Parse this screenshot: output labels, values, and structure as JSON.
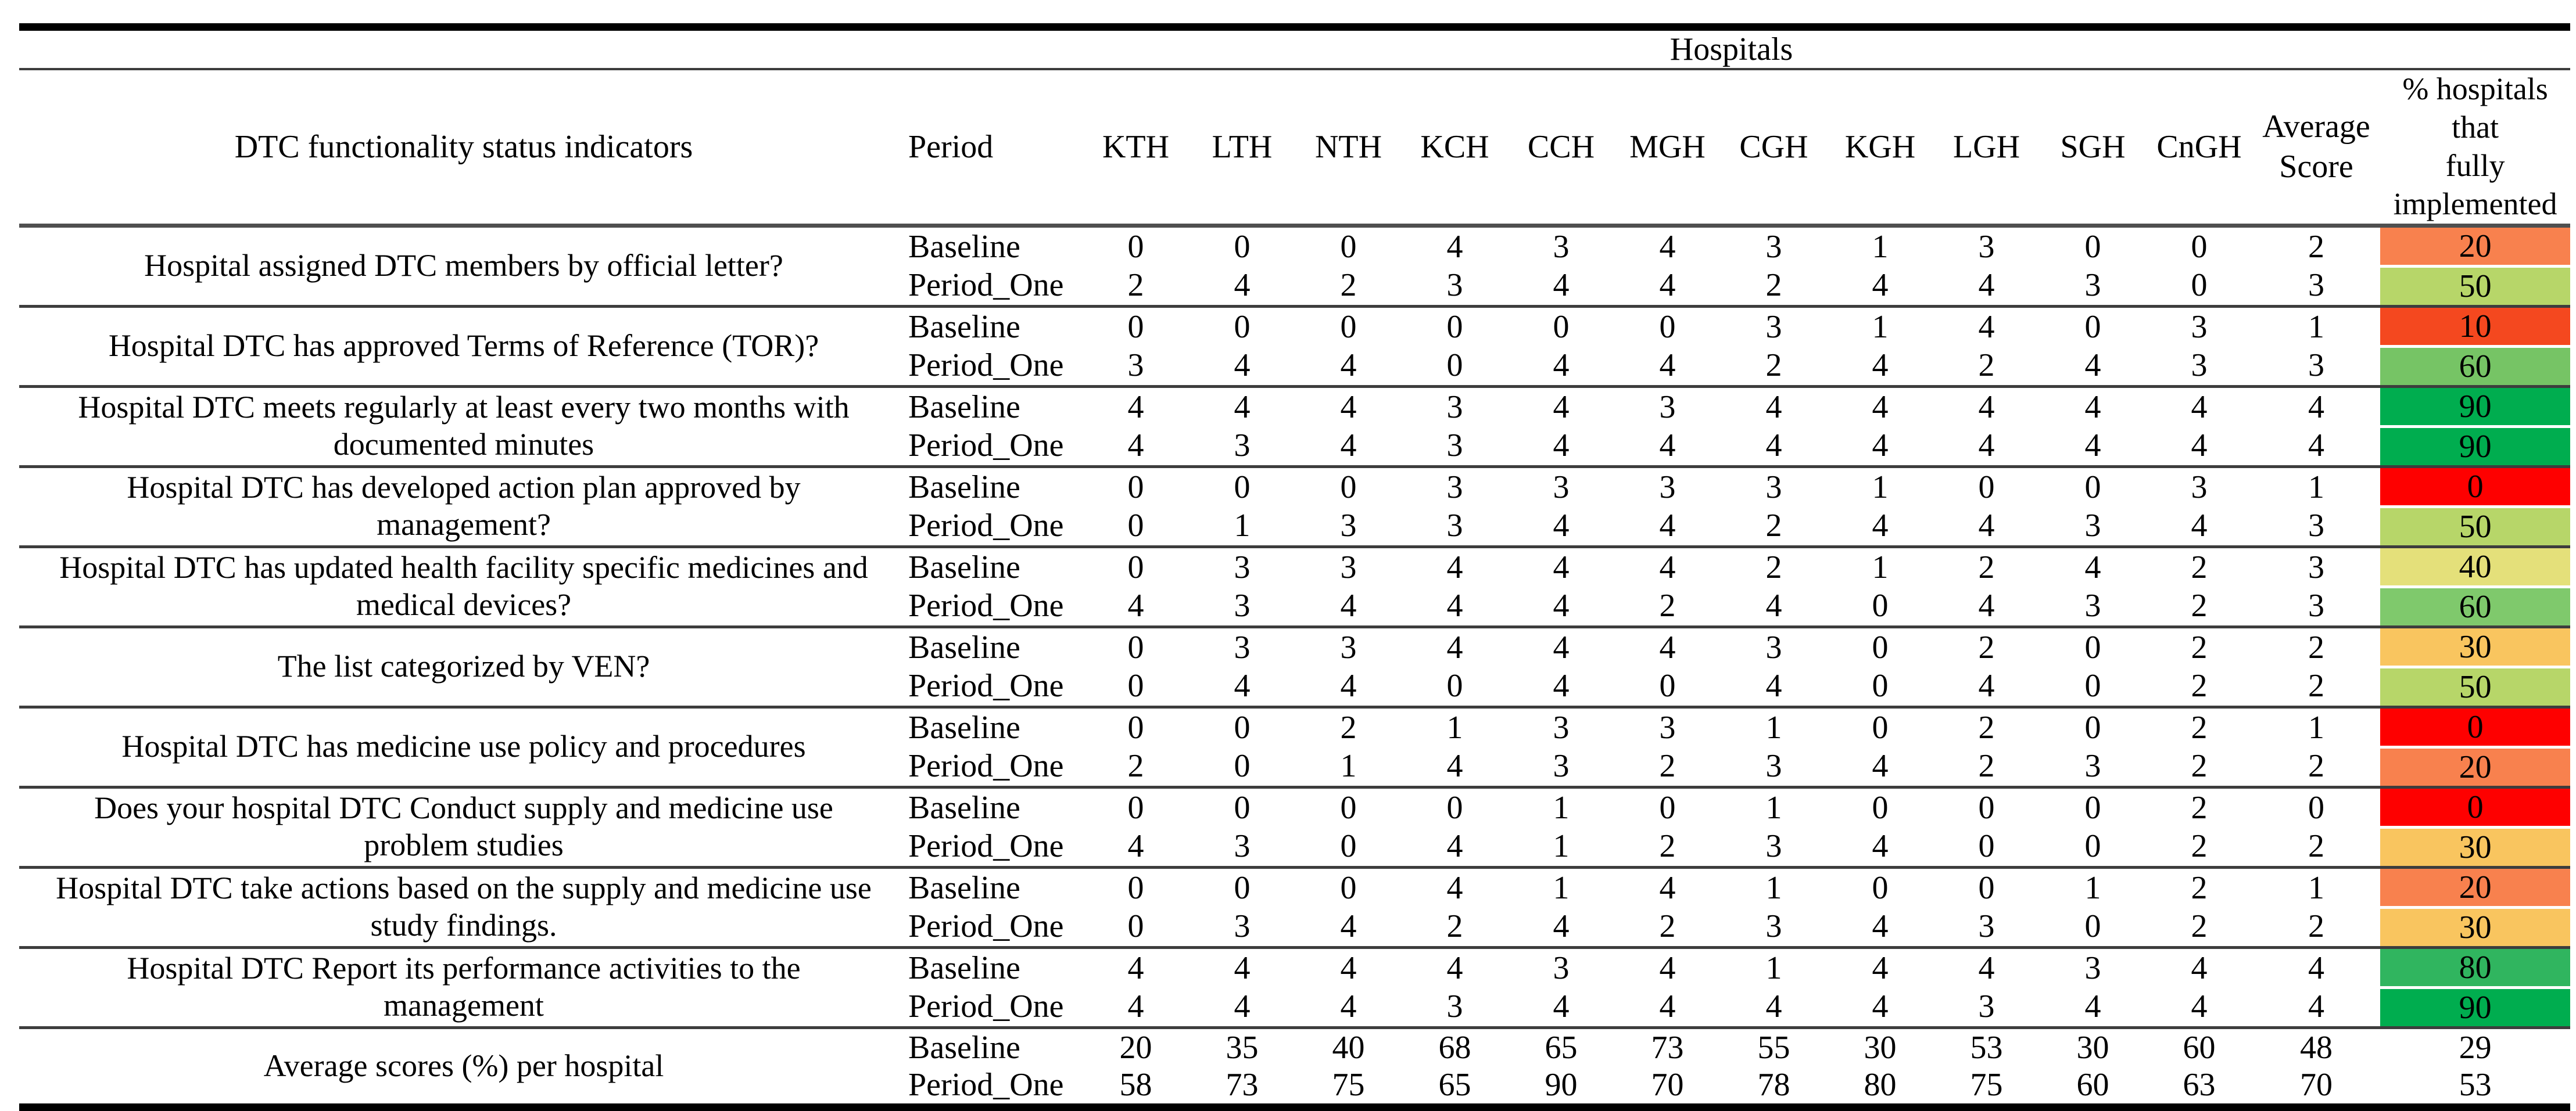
{
  "table": {
    "group_header": "Hospitals",
    "columns": [
      "DTC functionality status indicators",
      "Period",
      "KTH",
      "LTH",
      "NTH",
      "KCH",
      "CCH",
      "MGH",
      "CGH",
      "KGH",
      "LGH",
      "SGH",
      "CnGH",
      "Average Score",
      "% hospitals that\nfully\nimplemented"
    ],
    "rows": [
      {
        "indicator": "Hospital assigned DTC members by official letter?",
        "periods": [
          {
            "period": "Baseline",
            "scores": [
              0,
              0,
              0,
              4,
              3,
              4,
              3,
              1,
              3,
              0,
              0
            ],
            "average": 2,
            "pct": 20,
            "color": "#F8814E",
            "flag": "cngh"
          },
          {
            "period": "Period_One",
            "scores": [
              2,
              4,
              2,
              3,
              4,
              4,
              2,
              4,
              4,
              3,
              0
            ],
            "average": 3,
            "pct": 50,
            "color": "#B7D669",
            "flag": null
          }
        ]
      },
      {
        "indicator": "Hospital DTC has approved Terms of Reference (TOR)?",
        "periods": [
          {
            "period": "Baseline",
            "scores": [
              0,
              0,
              0,
              0,
              0,
              0,
              3,
              1,
              4,
              0,
              3
            ],
            "average": 1,
            "pct": 10,
            "color": "#F4481F",
            "flag": null
          },
          {
            "period": "Period_One",
            "scores": [
              3,
              4,
              4,
              0,
              4,
              4,
              2,
              4,
              2,
              4,
              3
            ],
            "average": 3,
            "pct": 60,
            "color": "#76C465",
            "flag": null
          }
        ]
      },
      {
        "indicator": "Hospital DTC meets regularly at least every two months with documented minutes",
        "periods": [
          {
            "period": "Baseline",
            "scores": [
              4,
              4,
              4,
              3,
              4,
              3,
              4,
              4,
              4,
              4,
              4
            ],
            "average": 4,
            "pct": 90,
            "color": "#00AD4F",
            "flag": null
          },
          {
            "period": "Period_One",
            "scores": [
              4,
              3,
              4,
              3,
              4,
              4,
              4,
              4,
              4,
              4,
              4
            ],
            "average": 4,
            "pct": 90,
            "color": "#00AD4F",
            "flag": null
          }
        ]
      },
      {
        "indicator": "Hospital DTC has developed action plan approved by management?",
        "periods": [
          {
            "period": "Baseline",
            "scores": [
              0,
              0,
              0,
              3,
              3,
              3,
              3,
              1,
              0,
              0,
              3
            ],
            "average": 1,
            "pct": 0,
            "color": "#FE0000",
            "flag": null
          },
          {
            "period": "Period_One",
            "scores": [
              0,
              1,
              3,
              3,
              4,
              4,
              2,
              4,
              4,
              3,
              4
            ],
            "average": 3,
            "pct": 50,
            "color": "#B7D669",
            "flag": null
          }
        ]
      },
      {
        "indicator": "Hospital DTC has updated health facility specific medicines and medical devices?",
        "periods": [
          {
            "period": "Baseline",
            "scores": [
              0,
              3,
              3,
              4,
              4,
              4,
              2,
              1,
              2,
              4,
              2
            ],
            "average": 3,
            "pct": 40,
            "color": "#E4E07A",
            "flag": null
          },
          {
            "period": "Period_One",
            "scores": [
              4,
              3,
              4,
              4,
              4,
              2,
              4,
              0,
              4,
              3,
              2
            ],
            "average": 3,
            "pct": 60,
            "color": "#7FC96C",
            "flag": null
          }
        ]
      },
      {
        "indicator": "The list categorized by VEN?",
        "periods": [
          {
            "period": "Baseline",
            "scores": [
              0,
              3,
              3,
              4,
              4,
              4,
              3,
              0,
              2,
              0,
              2
            ],
            "average": 2,
            "pct": 30,
            "color": "#F9C55F",
            "flag": null
          },
          {
            "period": "Period_One",
            "scores": [
              0,
              4,
              4,
              0,
              4,
              0,
              4,
              0,
              4,
              0,
              2
            ],
            "average": 2,
            "pct": 50,
            "color": "#B7D669",
            "flag": null
          }
        ]
      },
      {
        "indicator": "Hospital DTC has medicine use policy and procedures",
        "periods": [
          {
            "period": "Baseline",
            "scores": [
              0,
              0,
              2,
              1,
              3,
              3,
              1,
              0,
              2,
              0,
              2
            ],
            "average": 1,
            "pct": 0,
            "color": "#FE0000",
            "flag": null
          },
          {
            "period": "Period_One",
            "scores": [
              2,
              0,
              1,
              4,
              3,
              2,
              3,
              4,
              2,
              3,
              2
            ],
            "average": 2,
            "pct": 20,
            "color": "#F8814E",
            "flag": "pct"
          }
        ]
      },
      {
        "indicator": "Does your hospital DTC Conduct supply and medicine use problem studies",
        "periods": [
          {
            "period": "Baseline",
            "scores": [
              0,
              0,
              0,
              0,
              1,
              0,
              1,
              0,
              0,
              0,
              2
            ],
            "average": 0,
            "pct": 0,
            "color": "#FE0000",
            "flag": null
          },
          {
            "period": "Period_One",
            "scores": [
              4,
              3,
              0,
              4,
              1,
              2,
              3,
              4,
              0,
              0,
              2
            ],
            "average": 2,
            "pct": 30,
            "color": "#F9C55F",
            "flag": null
          }
        ]
      },
      {
        "indicator": "Hospital DTC take actions based on the supply and medicine use study findings.",
        "periods": [
          {
            "period": "Baseline",
            "scores": [
              0,
              0,
              0,
              4,
              1,
              4,
              1,
              0,
              0,
              1,
              2
            ],
            "average": 1,
            "pct": 20,
            "color": "#F8814E",
            "flag": "pct"
          },
          {
            "period": "Period_One",
            "scores": [
              0,
              3,
              4,
              2,
              4,
              2,
              3,
              4,
              3,
              0,
              2
            ],
            "average": 2,
            "pct": 30,
            "color": "#F9C55F",
            "flag": null
          }
        ]
      },
      {
        "indicator": "Hospital DTC Report its performance activities to the management",
        "periods": [
          {
            "period": "Baseline",
            "scores": [
              4,
              4,
              4,
              4,
              3,
              4,
              1,
              4,
              4,
              3,
              4
            ],
            "average": 4,
            "pct": 80,
            "color": "#30B55F",
            "flag": null
          },
          {
            "period": "Period_One",
            "scores": [
              4,
              4,
              4,
              3,
              4,
              4,
              4,
              4,
              3,
              4,
              4
            ],
            "average": 4,
            "pct": 90,
            "color": "#00AD4F",
            "flag": null
          }
        ]
      },
      {
        "indicator": "Average scores (%) per hospital",
        "periods": [
          {
            "period": "Baseline",
            "scores": [
              20,
              35,
              40,
              68,
              65,
              73,
              55,
              30,
              53,
              30,
              60
            ],
            "average": 48,
            "pct": 29,
            "color": null,
            "flag": null
          },
          {
            "period": "Period_One",
            "scores": [
              58,
              73,
              75,
              65,
              90,
              70,
              78,
              80,
              75,
              60,
              63
            ],
            "average": 70,
            "pct": 53,
            "color": null,
            "flag": null
          }
        ]
      }
    ]
  }
}
